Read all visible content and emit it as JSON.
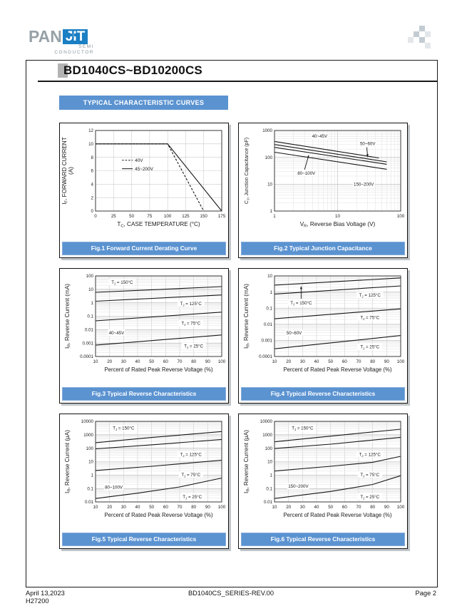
{
  "header": {
    "logo_pan": "PAN",
    "logo_jit": "JIT",
    "logo_sub1": "SEMI",
    "logo_sub2": "CONDUCTOR"
  },
  "title": "BD1040CS~BD10200CS",
  "section_title": "TYPICAL CHARACTERISTIC CURVES",
  "figures": [
    {
      "caption": "Fig.1 Forward Current Derating Curve"
    },
    {
      "caption": "Fig.2 Typical Junction Capacitance"
    },
    {
      "caption": "Fig.3 Typical Reverse Characteristics"
    },
    {
      "caption": "Fig.4 Typical Reverse Characteristics"
    },
    {
      "caption": "Fig.5 Typical Reverse Characteristics"
    },
    {
      "caption": "Fig.6 Typical Reverse Characteristics"
    }
  ],
  "footer": {
    "date": "April 13,2023",
    "doc_code": "H27200",
    "series": "BD1040CS_SERIES-REV.00",
    "page": "Page 2"
  },
  "colors": {
    "accent_blue": "#5b93d1",
    "logo_blue": "#1b7fc4",
    "logo_gray": "#97a1a7",
    "marker_gray": "#b3b3b3"
  },
  "chart_data": [
    {
      "id": "fig1",
      "type": "line",
      "title": "Forward Current Derating Curve",
      "xscale": "linear",
      "yscale": "linear",
      "xlim": [
        0,
        175
      ],
      "ylim": [
        0,
        12
      ],
      "xticks": [
        0,
        25,
        50,
        75,
        100,
        125,
        150,
        175
      ],
      "yticks": [
        0,
        2,
        4,
        6,
        8,
        10,
        12
      ],
      "xlabel": "T{C}, CASE TEMPERATURE (°C)",
      "ylabel": "I{F}, FORWARD CURRENT",
      "ylabel2": "(A)",
      "series": [
        {
          "name": "40V",
          "dash": true,
          "points": [
            [
              0,
              10
            ],
            [
              100,
              10
            ],
            [
              150,
              0
            ]
          ]
        },
        {
          "name": "45~200V",
          "dash": false,
          "points": [
            [
              0,
              10
            ],
            [
              100,
              10
            ],
            [
              175,
              0
            ]
          ]
        }
      ],
      "legend": {
        "fx": 0.21,
        "fy": 0.37,
        "dy": 0.105
      }
    },
    {
      "id": "fig2",
      "type": "line",
      "title": "Typical Junction Capacitance",
      "xscale": "log",
      "yscale": "log",
      "xlim": [
        1,
        100
      ],
      "ylim": [
        1,
        1000
      ],
      "xticks": [
        1,
        10,
        100
      ],
      "yticks": [
        1,
        10,
        100,
        1000
      ],
      "xlabel": "V{R}, Reverse Bias Voltage (V)",
      "ylabel": "C{J}, Junction Capacitance (pF)",
      "series": [
        {
          "name": "40~45V",
          "points": [
            [
              1,
              390
            ],
            [
              45,
              95
            ]
          ]
        },
        {
          "name": "50~60V",
          "points": [
            [
              1,
              300
            ],
            [
              60,
              68
            ]
          ]
        },
        {
          "name": "80~100V",
          "points": [
            [
              1,
              235
            ],
            [
              60,
              55
            ]
          ]
        },
        {
          "name": "150~200V",
          "points": [
            [
              1,
              155
            ],
            [
              60,
              36
            ]
          ]
        }
      ],
      "annotations": [
        {
          "text": "40~45V",
          "x": 5.2,
          "y": 620
        },
        {
          "text": "50~60V",
          "x": 30,
          "y": 330,
          "arrow": [
            29,
            235,
            30,
            100
          ]
        },
        {
          "text": "80~100V",
          "x": 3.2,
          "y": 26,
          "arrow": [
            3.0,
            35,
            3.5,
            125
          ]
        },
        {
          "text": "150~200V",
          "x": 26,
          "y": 10
        }
      ]
    },
    {
      "id": "fig3",
      "type": "line",
      "title": "Typical Reverse Characteristics 40~45V",
      "xscale": "linear",
      "yscale": "log",
      "xlim": [
        10,
        100
      ],
      "ylim": [
        0.0001,
        100
      ],
      "xticks": [
        10,
        20,
        30,
        40,
        50,
        60,
        70,
        80,
        90,
        100
      ],
      "yticks": [
        0.0001,
        0.001,
        0.01,
        0.1,
        1,
        10,
        100
      ],
      "xlabel": "Percent of Rated Peak Reverse Voltage (%)",
      "ylabel": "I{R}, Reverse Current (mA)",
      "series": [
        {
          "name": "TJ=150°C",
          "points": [
            [
              10,
              6
            ],
            [
              100,
              16
            ]
          ]
        },
        {
          "name": "TJ=125°C",
          "points": [
            [
              10,
              1.3
            ],
            [
              100,
              3.8
            ]
          ]
        },
        {
          "name": "TJ=75°C",
          "points": [
            [
              10,
              0.045
            ],
            [
              100,
              0.2
            ]
          ]
        },
        {
          "name": "TJ=25°C",
          "points": [
            [
              10,
              0.0007
            ],
            [
              100,
              0.004
            ]
          ]
        }
      ],
      "annotations": [
        {
          "text": "T{J} = 150°C",
          "x": 29,
          "y": 35
        },
        {
          "text": "T{J} = 125°C",
          "x": 78,
          "y": 0.9
        },
        {
          "text": "T{J} = 75°C",
          "x": 78,
          "y": 0.03
        },
        {
          "text": "T{J} = 25°C",
          "x": 80,
          "y": 0.0006
        },
        {
          "text": "40~45V",
          "x": 25,
          "y": 0.006
        }
      ]
    },
    {
      "id": "fig4",
      "type": "line",
      "title": "Typical Reverse Characteristics 50~60V",
      "xscale": "linear",
      "yscale": "log",
      "xlim": [
        10,
        100
      ],
      "ylim": [
        0.0001,
        10
      ],
      "xticks": [
        10,
        20,
        30,
        40,
        50,
        60,
        70,
        80,
        90,
        100
      ],
      "yticks": [
        0.0001,
        0.001,
        0.01,
        0.1,
        1,
        10
      ],
      "xlabel": "Percent of Rated Peak Reverse Voltage (%)",
      "ylabel": "I{R}, Reverse Current (mA)",
      "series": [
        {
          "name": "TJ=150°C",
          "points": [
            [
              10,
              2.7
            ],
            [
              100,
              7.5
            ]
          ]
        },
        {
          "name": "TJ=125°C",
          "points": [
            [
              10,
              0.75
            ],
            [
              100,
              2.4
            ]
          ]
        },
        {
          "name": "TJ=75°C",
          "points": [
            [
              10,
              0.022
            ],
            [
              100,
              0.09
            ]
          ]
        },
        {
          "name": "TJ=25°C",
          "points": [
            [
              10,
              0.0003
            ],
            [
              100,
              0.002
            ]
          ]
        }
      ],
      "annotations": [
        {
          "text": "T{J} = 150°C",
          "x": 29,
          "y": 0.22,
          "arrow": [
            29,
            0.38,
            29,
            2.4
          ]
        },
        {
          "text": "T{J} = 125°C",
          "x": 78,
          "y": 0.65
        },
        {
          "text": "T{J} = 75°C",
          "x": 78,
          "y": 0.027
        },
        {
          "text": "T{J} = 25°C",
          "x": 78,
          "y": 0.0004
        },
        {
          "text": "50~60V",
          "x": 24,
          "y": 0.003
        }
      ]
    },
    {
      "id": "fig5",
      "type": "line",
      "title": "Typical Reverse Characteristics 80~100V",
      "xscale": "linear",
      "yscale": "log",
      "xlim": [
        10,
        100
      ],
      "ylim": [
        0.01,
        10000
      ],
      "xticks": [
        10,
        20,
        30,
        40,
        50,
        60,
        70,
        80,
        90,
        100
      ],
      "yticks": [
        0.01,
        0.1,
        1,
        10,
        100,
        1000,
        10000
      ],
      "xlabel": "Percent of Rated Peak Reverse Voltage (%)",
      "ylabel": "I{R}, Reverse Current (µA)",
      "series": [
        {
          "name": "TJ=150°C",
          "points": [
            [
              10,
              260
            ],
            [
              50,
              630
            ],
            [
              100,
              1750
            ]
          ]
        },
        {
          "name": "TJ=125°C",
          "points": [
            [
              10,
              90
            ],
            [
              50,
              180
            ],
            [
              100,
              450
            ]
          ]
        },
        {
          "name": "TJ=75°C",
          "points": [
            [
              10,
              2.2
            ],
            [
              50,
              4.5
            ],
            [
              100,
              13
            ]
          ]
        },
        {
          "name": "TJ=25°C",
          "points": [
            [
              10,
              0.018
            ],
            [
              40,
              0.045
            ],
            [
              70,
              0.13
            ],
            [
              100,
              0.6
            ]
          ]
        }
      ],
      "annotations": [
        {
          "text": "T{J} = 150°C",
          "x": 30,
          "y": 3200
        },
        {
          "text": "T{J} = 125°C",
          "x": 78,
          "y": 35
        },
        {
          "text": "T{J} = 75°C",
          "x": 78,
          "y": 1.1
        },
        {
          "text": "T{J} = 25°C",
          "x": 79,
          "y": 0.025
        },
        {
          "text": "80~100V",
          "x": 23,
          "y": 0.13
        }
      ]
    },
    {
      "id": "fig6",
      "type": "line",
      "title": "Typical Reverse Characteristics 150~200V",
      "xscale": "linear",
      "yscale": "log",
      "xlim": [
        10,
        100
      ],
      "ylim": [
        0.01,
        10000
      ],
      "xticks": [
        10,
        20,
        30,
        40,
        50,
        60,
        70,
        80,
        90,
        100
      ],
      "yticks": [
        0.01,
        0.1,
        1,
        10,
        100,
        1000,
        10000
      ],
      "xlabel": "Percent of Rated Peak Reverse Voltage (%)",
      "ylabel": "I{R}, Reverse Current (µA)",
      "series": [
        {
          "name": "TJ=150°C",
          "points": [
            [
              10,
              300
            ],
            [
              50,
              800
            ],
            [
              100,
              2600
            ]
          ]
        },
        {
          "name": "TJ=125°C",
          "points": [
            [
              10,
              95
            ],
            [
              50,
              200
            ],
            [
              100,
              650
            ]
          ]
        },
        {
          "name": "TJ=75°C",
          "points": [
            [
              10,
              2
            ],
            [
              50,
              4.5
            ],
            [
              80,
              9
            ],
            [
              100,
              25
            ]
          ]
        },
        {
          "name": "TJ=25°C",
          "points": [
            [
              10,
              0.018
            ],
            [
              50,
              0.06
            ],
            [
              80,
              0.2
            ],
            [
              100,
              0.9
            ]
          ]
        }
      ],
      "annotations": [
        {
          "text": "T{J} = 150°C",
          "x": 30,
          "y": 3200
        },
        {
          "text": "T{J} = 125°C",
          "x": 78,
          "y": 35
        },
        {
          "text": "T{J} = 75°C",
          "x": 78,
          "y": 1.1
        },
        {
          "text": "T{J} = 25°C",
          "x": 78,
          "y": 0.025
        },
        {
          "text": "150~200V",
          "x": 27,
          "y": 0.15
        }
      ]
    }
  ]
}
